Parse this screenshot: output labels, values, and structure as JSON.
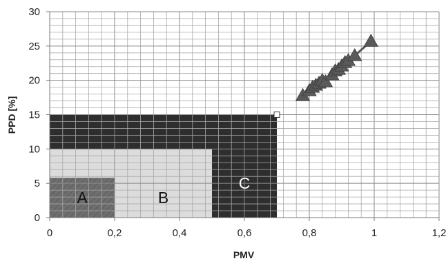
{
  "chart_data": {
    "type": "scatter",
    "xlabel": "PMV",
    "ylabel": "PPD [%]",
    "xlim": [
      0,
      1.2
    ],
    "ylim": [
      0,
      30
    ],
    "x_major_ticks": [
      0,
      0.2,
      0.4,
      0.6,
      0.8,
      1,
      1.2
    ],
    "x_tick_labels": [
      "0",
      "0,2",
      "0,4",
      "0,6",
      "0,8",
      "1",
      "1,2"
    ],
    "y_major_ticks": [
      0,
      5,
      10,
      15,
      20,
      25,
      30
    ],
    "y_tick_labels": [
      "0",
      "5",
      "10",
      "15",
      "20",
      "25",
      "30"
    ],
    "grid": true,
    "x_minor_step": 0.04,
    "y_minor_step": 1,
    "zones": [
      {
        "label": "C",
        "pmv_max": 0.7,
        "ppd_max": 15,
        "color": "#2e2e2e",
        "text_color": "#ffffff"
      },
      {
        "label": "B",
        "pmv_max": 0.5,
        "ppd_max": 10,
        "color": "#dcdcdc",
        "text_color": "#111111"
      },
      {
        "label": "A",
        "pmv_max": 0.2,
        "ppd_max": 5.8,
        "color": "#6e6e6e",
        "text_color": "#111111"
      }
    ],
    "corner_marker": {
      "x": 0.7,
      "y": 15
    },
    "series": [
      {
        "marker": "triangle",
        "color": "#5a5a5a",
        "x": [
          0.78,
          0.8,
          0.81,
          0.82,
          0.83,
          0.84,
          0.85,
          0.87,
          0.88,
          0.89,
          0.9,
          0.91,
          0.92,
          0.94,
          0.99
        ],
        "y": [
          17.8,
          18.5,
          19.0,
          19.3,
          19.6,
          20.0,
          19.8,
          20.8,
          21.4,
          21.6,
          22.1,
          22.6,
          22.9,
          23.6,
          25.7
        ]
      }
    ]
  }
}
